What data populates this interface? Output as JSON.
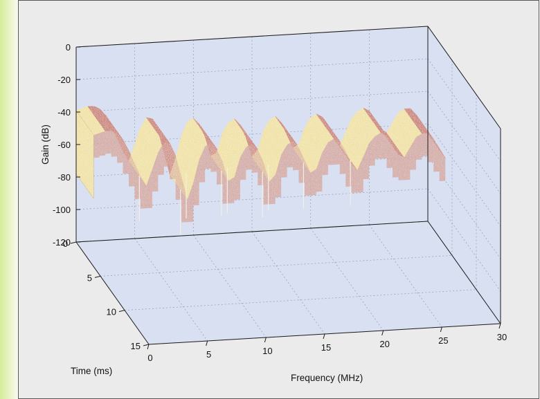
{
  "chart_data": {
    "type": "surface",
    "title": "",
    "xlabel": "Frequency (MHz)",
    "ylabel": "Time (ms)",
    "zlabel": "Gain (dB)",
    "xlim": [
      0,
      30
    ],
    "ylim": [
      0,
      15
    ],
    "zlim": [
      -120,
      0
    ],
    "x_ticks": [
      "0",
      "5",
      "10",
      "15",
      "20",
      "25",
      "30"
    ],
    "y_ticks": [
      "0",
      "5",
      "10",
      "15"
    ],
    "z_ticks": [
      "0",
      "-20",
      "-40",
      "-60",
      "-80",
      "-100",
      "-120"
    ],
    "grid": true,
    "series": [
      {
        "frequency_mhz": [
          0,
          0.5,
          1,
          1.5,
          2,
          2.5,
          3,
          3.5,
          4,
          4.5,
          5,
          5.5,
          6,
          6.5,
          7,
          7.5,
          8,
          8.5,
          9,
          9.5,
          10,
          10.5,
          11,
          11.5,
          12,
          12.5,
          13,
          13.5,
          14,
          14.5,
          15,
          15.5,
          16,
          16.5,
          17,
          17.5,
          18,
          18.5,
          19,
          19.5,
          20,
          20.5,
          21,
          21.5,
          22,
          22.5,
          23,
          23.5,
          24,
          24.5,
          25,
          25.5,
          26,
          26.5,
          27,
          27.5,
          28,
          28.5,
          29,
          29.5,
          30
        ],
        "gain_db": [
          -39,
          -38,
          -37,
          -37,
          -39,
          -43,
          -50,
          -58,
          -66,
          -72,
          -62,
          -52,
          -46,
          -47,
          -55,
          -68,
          -82,
          -72,
          -58,
          -50,
          -48,
          -52,
          -60,
          -72,
          -70,
          -58,
          -52,
          -50,
          -54,
          -62,
          -74,
          -70,
          -58,
          -52,
          -50,
          -54,
          -62,
          -70,
          -68,
          -58,
          -52,
          -50,
          -52,
          -58,
          -66,
          -70,
          -62,
          -54,
          -50,
          -48,
          -50,
          -56,
          -62,
          -64,
          -58,
          -52,
          -50,
          -50,
          -54,
          -60,
          -66
        ]
      }
    ],
    "colors": {
      "surface_light": "#f0e2a8",
      "surface_dark": "#cc8a82",
      "box_fill": "#d8e0f2",
      "frame_background": "#ebebeb"
    }
  }
}
